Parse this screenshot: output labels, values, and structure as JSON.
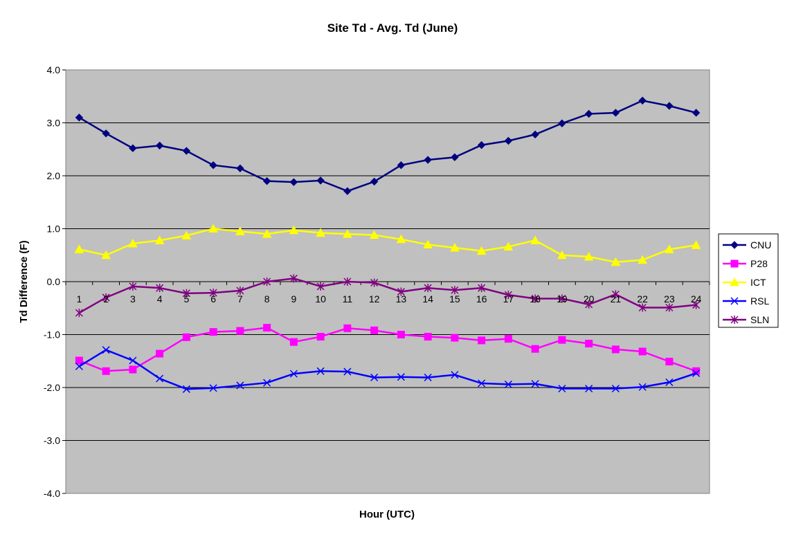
{
  "chart_data": {
    "type": "line",
    "title": "Site Td - Avg. Td (June)",
    "xlabel": "Hour (UTC)",
    "ylabel": "Td Difference (F)",
    "ylim": [
      -4.0,
      4.0
    ],
    "yticks": [
      "4.0",
      "3.0",
      "2.0",
      "1.0",
      "0.0",
      "-1.0",
      "-2.0",
      "-3.0",
      "-4.0"
    ],
    "categories": [
      "1",
      "2",
      "3",
      "4",
      "5",
      "6",
      "7",
      "8",
      "9",
      "10",
      "11",
      "12",
      "13",
      "14",
      "15",
      "16",
      "17",
      "18",
      "19",
      "20",
      "21",
      "22",
      "23",
      "24"
    ],
    "grid": "horizontal",
    "legend_position": "right",
    "plot_background": "#c0c0c0",
    "series": [
      {
        "name": "CNU",
        "color": "#000080",
        "marker": "diamond",
        "values": [
          3.1,
          2.8,
          2.52,
          2.57,
          2.47,
          2.2,
          2.14,
          1.9,
          1.88,
          1.91,
          1.71,
          1.89,
          2.2,
          2.3,
          2.35,
          2.58,
          2.66,
          2.78,
          2.99,
          3.17,
          3.19,
          3.42,
          3.32,
          3.19
        ]
      },
      {
        "name": "P28",
        "color": "#ff00ff",
        "marker": "square",
        "values": [
          -1.49,
          -1.69,
          -1.66,
          -1.36,
          -1.05,
          -0.95,
          -0.93,
          -0.87,
          -1.14,
          -1.04,
          -0.88,
          -0.92,
          -1.0,
          -1.04,
          -1.06,
          -1.11,
          -1.08,
          -1.27,
          -1.1,
          -1.17,
          -1.28,
          -1.32,
          -1.51,
          -1.69
        ]
      },
      {
        "name": "ICT",
        "color": "#ffff00",
        "marker": "triangle",
        "values": [
          0.61,
          0.5,
          0.72,
          0.78,
          0.87,
          1.0,
          0.95,
          0.9,
          0.97,
          0.92,
          0.9,
          0.88,
          0.8,
          0.7,
          0.64,
          0.58,
          0.66,
          0.78,
          0.5,
          0.47,
          0.37,
          0.41,
          0.61,
          0.69
        ]
      },
      {
        "name": "RSL",
        "color": "#0000ff",
        "marker": "x",
        "values": [
          -1.6,
          -1.29,
          -1.49,
          -1.83,
          -2.03,
          -2.01,
          -1.96,
          -1.91,
          -1.74,
          -1.69,
          -1.7,
          -1.81,
          -1.8,
          -1.81,
          -1.76,
          -1.92,
          -1.94,
          -1.93,
          -2.02,
          -2.02,
          -2.02,
          -1.99,
          -1.9,
          -1.73
        ]
      },
      {
        "name": "SLN",
        "color": "#800080",
        "marker": "star",
        "values": [
          -0.59,
          -0.3,
          -0.09,
          -0.12,
          -0.22,
          -0.21,
          -0.17,
          0.0,
          0.06,
          -0.09,
          0.0,
          -0.02,
          -0.19,
          -0.12,
          -0.16,
          -0.12,
          -0.25,
          -0.32,
          -0.32,
          -0.43,
          -0.24,
          -0.49,
          -0.49,
          -0.44
        ]
      }
    ]
  }
}
